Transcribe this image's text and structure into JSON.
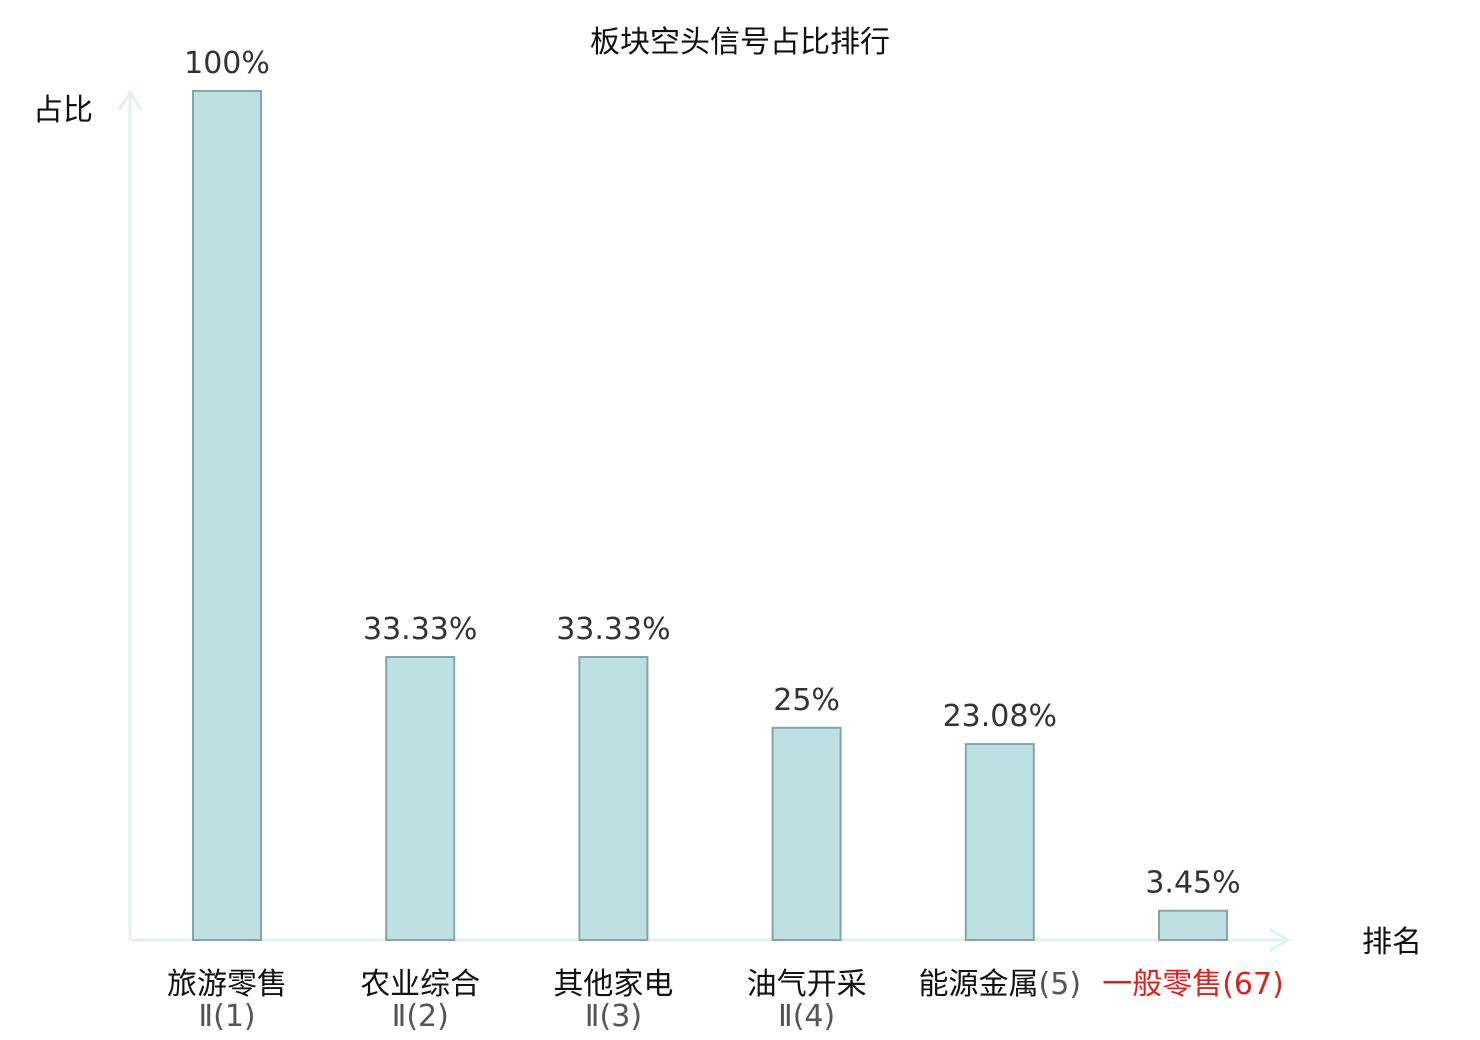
{
  "chart_data": {
    "type": "bar",
    "title": "板块空头信号占比排行",
    "ylabel": "占比",
    "xlabel": "排名",
    "ylim": [
      0,
      100
    ],
    "grid": false,
    "categories": [
      {
        "name": "旅游零售",
        "rank": "Ⅱ(1)",
        "highlight": false
      },
      {
        "name": "农业综合",
        "rank": "Ⅱ(2)",
        "highlight": false
      },
      {
        "name": "其他家电",
        "rank": "Ⅱ(3)",
        "highlight": false
      },
      {
        "name": "油气开采",
        "rank": "Ⅱ(4)",
        "highlight": false
      },
      {
        "name": "能源金属",
        "rank": "(5)",
        "highlight": false
      },
      {
        "name": "一般零售",
        "rank": "(67)",
        "highlight": true
      }
    ],
    "values": [
      100,
      33.33,
      33.33,
      25,
      23.08,
      3.45
    ],
    "value_labels": [
      "100%",
      "33.33%",
      "33.33%",
      "25%",
      "23.08%",
      "3.45%"
    ],
    "colors": {
      "bar_fill": "#bde0e3",
      "bar_stroke": "#86a5a8",
      "axis": "#dff2ef",
      "highlight": "#e0201f"
    }
  }
}
